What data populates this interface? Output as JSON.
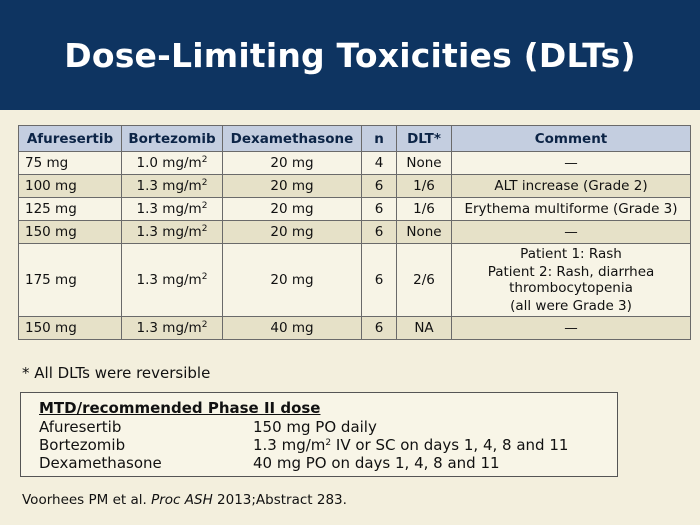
{
  "header": {
    "title": "Dose-Limiting Toxicities (DLTs)"
  },
  "table": {
    "headers": [
      "Afuresertib",
      "Bortezomib",
      "Dexamethasone",
      "n",
      "DLT*",
      "Comment"
    ],
    "rows": [
      {
        "afuresertib": "75 mg",
        "bortezomib": "1.0 mg/m",
        "bortezomib_sup": "2",
        "dexamethasone": "20 mg",
        "n": "4",
        "dlt": "None",
        "comment": "—"
      },
      {
        "afuresertib": "100 mg",
        "bortezomib": "1.3 mg/m",
        "bortezomib_sup": "2",
        "dexamethasone": "20 mg",
        "n": "6",
        "dlt": "1/6",
        "comment": "ALT increase (Grade 2)"
      },
      {
        "afuresertib": "125 mg",
        "bortezomib": "1.3 mg/m",
        "bortezomib_sup": "2",
        "dexamethasone": "20 mg",
        "n": "6",
        "dlt": "1/6",
        "comment": "Erythema multiforme (Grade 3)"
      },
      {
        "afuresertib": "150 mg",
        "bortezomib": "1.3 mg/m",
        "bortezomib_sup": "2",
        "dexamethasone": "20 mg",
        "n": "6",
        "dlt": "None",
        "comment": "—"
      },
      {
        "afuresertib": "175 mg",
        "bortezomib": "1.3 mg/m",
        "bortezomib_sup": "2",
        "dexamethasone": "20 mg",
        "n": "6",
        "dlt": "2/6",
        "comment_lines": [
          "Patient 1: Rash",
          "Patient 2: Rash, diarrhea thrombocytopenia",
          "(all were Grade 3)"
        ]
      },
      {
        "afuresertib": "150 mg",
        "bortezomib": "1.3 mg/m",
        "bortezomib_sup": "2",
        "dexamethasone": "40 mg",
        "n": "6",
        "dlt": "NA",
        "comment": "—"
      }
    ]
  },
  "footnote": "* All DLTs were reversible",
  "mtd": {
    "heading": "MTD/recommended Phase II dose",
    "items": [
      {
        "drug": "Afuresertib",
        "dose": "150 mg PO daily"
      },
      {
        "drug": "Bortezomib",
        "dose_pre": "1.3 mg/m",
        "dose_sup": "2",
        "dose_post": " IV or SC on days 1, 4, 8 and 11"
      },
      {
        "drug": "Dexamethasone",
        "dose": "40 mg PO on days 1, 4, 8 and 11"
      }
    ]
  },
  "citation": {
    "authors": "Voorhees PM et al. ",
    "journal": "Proc ASH",
    "rest": " 2013;Abstract 283."
  },
  "colors": {
    "header_bg": "#0e3461",
    "table_header_bg": "#c4cee0",
    "row_shade": "#e6e1c8",
    "page_bg": "#f3efdd"
  }
}
